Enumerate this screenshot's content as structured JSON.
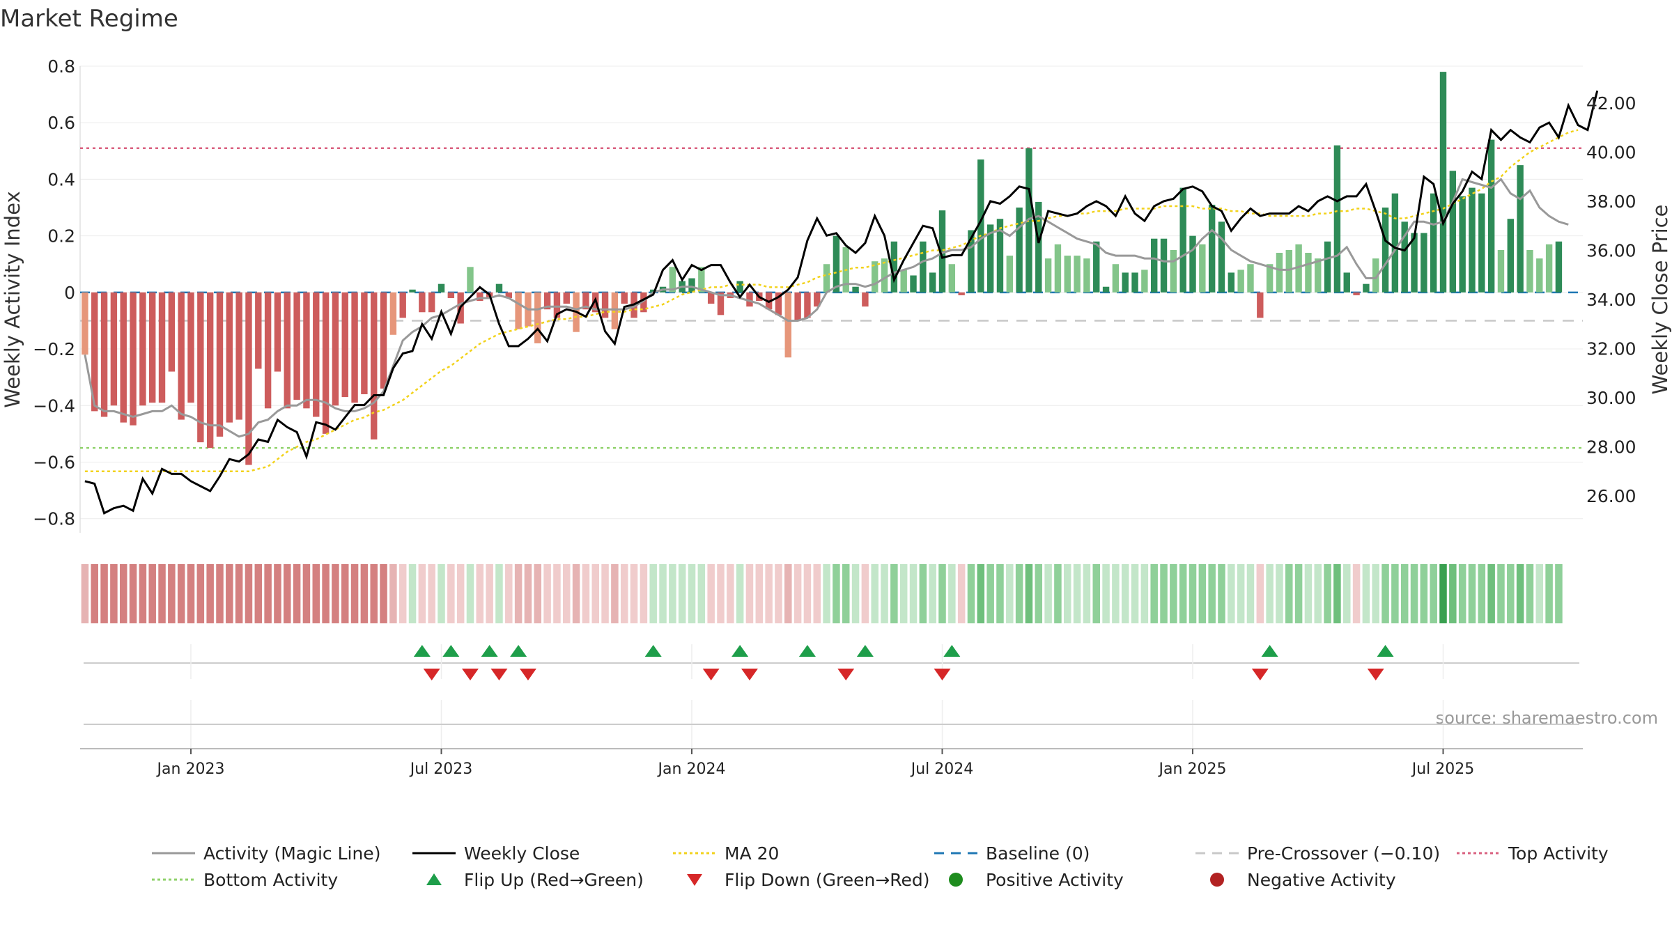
{
  "title": "Market Regime",
  "source": "source: sharemaestro.com",
  "axes": {
    "y_left_label": "Weekly Activity Index",
    "y_right_label": "Weekly Close Price",
    "y_left_ticks": [
      {
        "value": 0.8,
        "label": "0.8"
      },
      {
        "value": 0.6,
        "label": "0.6"
      },
      {
        "value": 0.4,
        "label": "0.4"
      },
      {
        "value": 0.2,
        "label": "0.2"
      },
      {
        "value": 0,
        "label": "0"
      },
      {
        "value": -0.2,
        "label": "−0.2"
      },
      {
        "value": -0.4,
        "label": "−0.4"
      },
      {
        "value": -0.6,
        "label": "−0.6"
      },
      {
        "value": -0.8,
        "label": "−0.8"
      }
    ],
    "y_right_ticks": [
      {
        "value": 42,
        "label": "42.00"
      },
      {
        "value": 40,
        "label": "40.00"
      },
      {
        "value": 38,
        "label": "38.00"
      },
      {
        "value": 36,
        "label": "36.00"
      },
      {
        "value": 34,
        "label": "34.00"
      },
      {
        "value": 32,
        "label": "32.00"
      },
      {
        "value": 30,
        "label": "30.00"
      },
      {
        "value": 28,
        "label": "28.00"
      },
      {
        "value": 26,
        "label": "26.00"
      }
    ],
    "x_ticks": [
      {
        "index": 11,
        "label": "Jan 2023"
      },
      {
        "index": 37,
        "label": "Jul 2023"
      },
      {
        "index": 63,
        "label": "Jan 2024"
      },
      {
        "index": 89,
        "label": "Jul 2024"
      },
      {
        "index": 115,
        "label": "Jan 2025"
      },
      {
        "index": 141,
        "label": "Jul 2025"
      }
    ]
  },
  "legend": [
    {
      "key": "magic",
      "label": "Activity (Magic Line)",
      "style": "line",
      "color": "#999999"
    },
    {
      "key": "close",
      "label": "Weekly Close",
      "style": "line",
      "color": "#000000"
    },
    {
      "key": "ma20",
      "label": "MA 20",
      "style": "dotted",
      "color": "#f2d21b"
    },
    {
      "key": "baseline",
      "label": "Baseline (0)",
      "style": "dashed",
      "color": "#1f77b4"
    },
    {
      "key": "precross",
      "label": "Pre-Crossover (−0.10)",
      "style": "dashed",
      "color": "#c8c8c8"
    },
    {
      "key": "top",
      "label": "Top Activity",
      "style": "dotted",
      "color": "#d9607f"
    },
    {
      "key": "bottom",
      "label": "Bottom Activity",
      "style": "dotted",
      "color": "#8fd16a"
    },
    {
      "key": "flipup",
      "label": "Flip Up (Red→Green)",
      "style": "triangle-up",
      "color": "#1e9e4a"
    },
    {
      "key": "flipdown",
      "label": "Flip Down (Green→Red)",
      "style": "triangle-down",
      "color": "#d62728"
    },
    {
      "key": "pos",
      "label": "Positive Activity",
      "style": "dot",
      "color": "#1e8c1e"
    },
    {
      "key": "neg",
      "label": "Negative Activity",
      "style": "dot",
      "color": "#b22222"
    }
  ],
  "chart_data": {
    "type": "bar",
    "n_weeks": 156,
    "first_week": "2022-10-16",
    "reference_lines": {
      "top_activity": 0.51,
      "bottom_activity": -0.55,
      "pre_crossover": -0.1,
      "baseline": 0
    },
    "y_left_range": [
      -0.85,
      0.8
    ],
    "y_right_range": [
      24.5,
      43.5
    ],
    "activity": [
      -0.22,
      -0.42,
      -0.44,
      -0.4,
      -0.46,
      -0.47,
      -0.4,
      -0.39,
      -0.39,
      -0.28,
      -0.45,
      -0.39,
      -0.53,
      -0.55,
      -0.51,
      -0.46,
      -0.45,
      -0.61,
      -0.27,
      -0.41,
      -0.28,
      -0.41,
      -0.38,
      -0.41,
      -0.44,
      -0.5,
      -0.4,
      -0.37,
      -0.39,
      -0.36,
      -0.52,
      -0.34,
      -0.15,
      -0.09,
      0.01,
      -0.07,
      -0.07,
      0.03,
      -0.02,
      -0.11,
      0.09,
      -0.03,
      -0.02,
      0.03,
      -0.02,
      -0.13,
      -0.12,
      -0.18,
      -0.06,
      -0.09,
      -0.04,
      -0.14,
      -0.06,
      -0.07,
      -0.09,
      -0.13,
      -0.04,
      -0.09,
      -0.07,
      0.01,
      0.02,
      0.09,
      0.04,
      0.05,
      0.09,
      -0.04,
      -0.08,
      -0.02,
      0.04,
      -0.05,
      -0.03,
      -0.06,
      -0.08,
      -0.23,
      -0.1,
      -0.09,
      -0.05,
      0.1,
      0.2,
      0.16,
      0.02,
      -0.05,
      0.11,
      0.12,
      0.18,
      0.08,
      0.06,
      0.18,
      0.07,
      0.29,
      0.1,
      -0.01,
      0.22,
      0.47,
      0.24,
      0.26,
      0.13,
      0.3,
      0.51,
      0.32,
      0.12,
      0.17,
      0.13,
      0.13,
      0.12,
      0.18,
      0.02,
      0.1,
      0.07,
      0.07,
      0.08,
      0.19,
      0.19,
      0.15,
      0.37,
      0.2,
      0.17,
      0.31,
      0.25,
      0.07,
      0.08,
      0.1,
      -0.09,
      0.1,
      0.14,
      0.15,
      0.17,
      0.14,
      0.12,
      0.18,
      0.52,
      0.07,
      -0.01,
      0.03,
      0.12,
      0.3,
      0.35,
      0.25,
      0.21,
      0.21,
      0.35,
      0.78,
      0.43,
      0.34,
      0.37,
      0.35,
      0.54,
      0.15,
      0.26,
      0.45,
      0.15,
      0.12,
      0.17,
      0.18
    ],
    "magic_line": [
      -0.22,
      -0.4,
      -0.42,
      -0.42,
      -0.43,
      -0.44,
      -0.43,
      -0.42,
      -0.42,
      -0.4,
      -0.43,
      -0.44,
      -0.46,
      -0.47,
      -0.47,
      -0.49,
      -0.51,
      -0.5,
      -0.46,
      -0.45,
      -0.42,
      -0.4,
      -0.4,
      -0.38,
      -0.38,
      -0.39,
      -0.41,
      -0.42,
      -0.42,
      -0.41,
      -0.39,
      -0.35,
      -0.26,
      -0.17,
      -0.14,
      -0.12,
      -0.09,
      -0.08,
      -0.06,
      -0.04,
      -0.03,
      -0.02,
      -0.02,
      -0.01,
      -0.02,
      -0.04,
      -0.06,
      -0.06,
      -0.05,
      -0.05,
      -0.05,
      -0.06,
      -0.05,
      -0.06,
      -0.06,
      -0.06,
      -0.06,
      -0.05,
      -0.03,
      0.0,
      0.01,
      0.01,
      0.02,
      0.02,
      0.01,
      0.0,
      -0.01,
      -0.01,
      -0.02,
      -0.03,
      -0.04,
      -0.06,
      -0.08,
      -0.1,
      -0.1,
      -0.09,
      -0.06,
      0.0,
      0.02,
      0.03,
      0.03,
      0.02,
      0.03,
      0.05,
      0.07,
      0.08,
      0.09,
      0.11,
      0.12,
      0.14,
      0.15,
      0.15,
      0.16,
      0.19,
      0.21,
      0.22,
      0.2,
      0.23,
      0.26,
      0.27,
      0.25,
      0.23,
      0.21,
      0.19,
      0.18,
      0.17,
      0.14,
      0.13,
      0.13,
      0.13,
      0.12,
      0.12,
      0.11,
      0.11,
      0.13,
      0.15,
      0.19,
      0.22,
      0.19,
      0.15,
      0.13,
      0.11,
      0.1,
      0.09,
      0.08,
      0.08,
      0.09,
      0.1,
      0.11,
      0.12,
      0.13,
      0.16,
      0.1,
      0.05,
      0.05,
      0.1,
      0.15,
      0.2,
      0.25,
      0.25,
      0.24,
      0.25,
      0.32,
      0.4,
      0.39,
      0.38,
      0.37,
      0.4,
      0.35,
      0.33,
      0.36,
      0.3,
      0.27,
      0.25,
      0.24
    ],
    "weekly_close": [
      26.6,
      26.5,
      25.3,
      25.5,
      25.6,
      25.4,
      26.7,
      26.1,
      27.1,
      26.9,
      26.9,
      26.6,
      26.4,
      26.2,
      26.8,
      27.5,
      27.4,
      27.7,
      28.3,
      28.2,
      29.1,
      28.8,
      28.6,
      27.6,
      29.0,
      28.9,
      28.7,
      29.2,
      29.7,
      29.7,
      30.1,
      30.1,
      31.2,
      31.8,
      31.9,
      33.0,
      32.4,
      33.5,
      32.6,
      33.7,
      34.1,
      34.5,
      34.2,
      33.0,
      32.1,
      32.1,
      32.4,
      32.8,
      32.3,
      33.4,
      33.6,
      33.5,
      33.3,
      34.0,
      32.7,
      32.2,
      33.7,
      33.8,
      34.0,
      34.2,
      35.2,
      35.6,
      34.8,
      35.4,
      35.2,
      35.4,
      35.4,
      34.7,
      34.1,
      34.6,
      34.1,
      33.9,
      34.1,
      34.4,
      34.9,
      36.4,
      37.3,
      36.6,
      36.7,
      36.2,
      35.9,
      36.3,
      37.4,
      36.6,
      34.8,
      35.6,
      36.3,
      37.0,
      36.9,
      35.7,
      35.8,
      35.8,
      36.5,
      37.2,
      38.0,
      37.9,
      38.2,
      38.6,
      38.5,
      36.3,
      37.6,
      37.5,
      37.4,
      37.5,
      37.8,
      38.0,
      37.8,
      37.4,
      38.2,
      37.5,
      37.2,
      37.8,
      38.0,
      38.1,
      38.5,
      38.6,
      38.4,
      37.8,
      37.6,
      36.8,
      37.3,
      37.7,
      37.4,
      37.5,
      37.5,
      37.5,
      37.8,
      37.6,
      38.0,
      38.2,
      38.0,
      38.2,
      38.2,
      38.7,
      37.6,
      36.4,
      36.1,
      36.0,
      36.5,
      39.0,
      38.7,
      37.1,
      37.9,
      38.4,
      39.2,
      38.9,
      40.9,
      40.5,
      40.9,
      40.6,
      40.4,
      41.0,
      41.2,
      40.6,
      41.9,
      41.1,
      40.9,
      42.5
    ],
    "ma20": [
      27.0,
      27.0,
      27.0,
      27.0,
      27.0,
      27.0,
      27.0,
      27.0,
      27.0,
      27.0,
      27.0,
      27.0,
      27.0,
      27.0,
      27.0,
      27.0,
      27.0,
      27.0,
      27.1,
      27.2,
      27.5,
      27.8,
      28.0,
      28.2,
      28.3,
      28.5,
      28.7,
      28.9,
      29.1,
      29.2,
      29.4,
      29.5,
      29.7,
      29.9,
      30.2,
      30.5,
      30.8,
      31.1,
      31.3,
      31.6,
      31.9,
      32.2,
      32.4,
      32.6,
      32.7,
      32.8,
      32.9,
      33.0,
      33.1,
      33.2,
      33.2,
      33.3,
      33.3,
      33.4,
      33.5,
      33.5,
      33.5,
      33.6,
      33.6,
      33.7,
      33.8,
      34.0,
      34.2,
      34.3,
      34.4,
      34.5,
      34.5,
      34.6,
      34.6,
      34.6,
      34.6,
      34.5,
      34.5,
      34.5,
      34.6,
      34.7,
      34.9,
      35.0,
      35.1,
      35.2,
      35.3,
      35.3,
      35.4,
      35.5,
      35.6,
      35.7,
      35.8,
      35.9,
      36.0,
      36.0,
      36.1,
      36.2,
      36.4,
      36.6,
      36.7,
      36.9,
      37.0,
      37.1,
      37.2,
      37.2,
      37.3,
      37.4,
      37.4,
      37.5,
      37.5,
      37.6,
      37.6,
      37.6,
      37.7,
      37.7,
      37.7,
      37.7,
      37.8,
      37.8,
      37.8,
      37.8,
      37.7,
      37.7,
      37.7,
      37.6,
      37.6,
      37.5,
      37.5,
      37.4,
      37.4,
      37.4,
      37.4,
      37.4,
      37.5,
      37.5,
      37.6,
      37.6,
      37.7,
      37.7,
      37.6,
      37.5,
      37.3,
      37.3,
      37.4,
      37.5,
      37.6,
      37.7,
      37.9,
      38.1,
      38.3,
      38.5,
      38.8,
      39.0,
      39.4,
      39.7,
      40.0,
      40.2,
      40.4,
      40.6,
      40.8,
      40.9
    ],
    "flip_up": [
      35,
      38,
      42,
      45,
      59,
      68,
      75,
      81,
      90,
      123,
      135
    ],
    "flip_down": [
      36,
      40,
      43,
      46,
      65,
      69,
      79,
      89,
      122,
      134
    ]
  }
}
